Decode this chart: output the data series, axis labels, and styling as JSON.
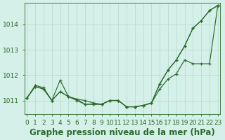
{
  "title": "Graphe pression niveau de la mer (hPa)",
  "x_labels": [
    "0",
    "1",
    "2",
    "3",
    "4",
    "5",
    "6",
    "7",
    "8",
    "9",
    "10",
    "11",
    "12",
    "13",
    "14",
    "15",
    "16",
    "17",
    "18",
    "19",
    "20",
    "21",
    "22",
    "23"
  ],
  "x_values": [
    0,
    1,
    2,
    3,
    4,
    5,
    6,
    7,
    8,
    9,
    10,
    11,
    12,
    13,
    14,
    15,
    16,
    17,
    18,
    19,
    20,
    21,
    22,
    23
  ],
  "series1": [
    1011.1,
    1011.6,
    1011.5,
    1011.0,
    1011.35,
    1011.15,
    1011.0,
    1010.85,
    1010.85,
    1010.85,
    1011.0,
    1011.0,
    1010.75,
    1010.75,
    1010.8,
    1010.9,
    1011.65,
    1012.2,
    1012.6,
    1013.15,
    1013.85,
    1014.15,
    1014.55,
    1014.75
  ],
  "series2": [
    1011.1,
    1011.55,
    1011.45,
    1011.0,
    1011.8,
    1011.15,
    1011.05,
    1010.9,
    1010.9,
    1010.9,
    1011.0,
    1011.0,
    1010.75,
    1010.75,
    1010.8,
    1010.9,
    1011.45,
    1011.85,
    1012.05,
    1012.6,
    1012.45,
    1012.45,
    1012.45,
    1014.75
  ],
  "series3": [
    1011.1,
    1011.55,
    1011.45,
    1011.0,
    1011.35,
    1011.15,
    1011.0,
    1010.85,
    1010.85,
    1010.85,
    1011.0,
    1011.0,
    1010.75,
    1010.75,
    1010.8,
    1010.9,
    1011.65,
    1012.2,
    1012.6,
    1013.15,
    1013.85,
    1014.15,
    1014.55,
    1014.75
  ],
  "line_color": "#2d6a2d",
  "bg_color": "#d4f0e8",
  "grid_color": "#b8ddd0",
  "ylim_min": 1010.45,
  "ylim_max": 1014.85,
  "yticks": [
    1011,
    1012,
    1013,
    1014
  ],
  "title_fontsize": 8.5,
  "tick_fontsize": 6.5
}
